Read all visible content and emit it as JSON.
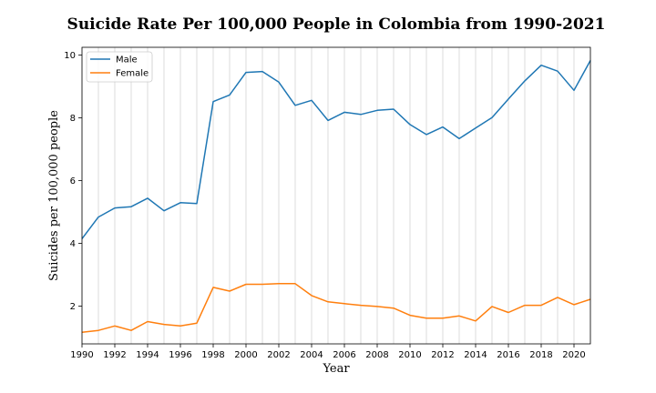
{
  "chart_data": {
    "type": "line",
    "title": "Suicide Rate Per 100,000 People in Colombia from 1990-2021",
    "xlabel": "Year",
    "ylabel": "Suicides per 100,000 people",
    "xlim": [
      1990,
      2021
    ],
    "ylim": [
      0.8,
      10.25
    ],
    "x_ticks": [
      1990,
      1992,
      1994,
      1996,
      1998,
      2000,
      2002,
      2004,
      2006,
      2008,
      2010,
      2012,
      2014,
      2016,
      2018,
      2020
    ],
    "y_ticks": [
      2,
      4,
      6,
      8,
      10
    ],
    "grid": "vertical lines at every year",
    "legend_position": "top-left",
    "x": [
      1990,
      1991,
      1992,
      1993,
      1994,
      1995,
      1996,
      1997,
      1998,
      1999,
      2000,
      2001,
      2002,
      2003,
      2004,
      2005,
      2006,
      2007,
      2008,
      2009,
      2010,
      2011,
      2012,
      2013,
      2014,
      2015,
      2016,
      2017,
      2018,
      2019,
      2020,
      2021
    ],
    "series": [
      {
        "name": "Male",
        "color": "#1f77b4",
        "values": [
          4.15,
          4.84,
          5.13,
          5.17,
          5.44,
          5.04,
          5.3,
          5.27,
          8.52,
          8.73,
          9.45,
          9.48,
          9.14,
          8.4,
          8.56,
          7.92,
          8.18,
          8.11,
          8.24,
          8.28,
          7.79,
          7.47,
          7.71,
          7.34,
          7.68,
          8.01,
          8.6,
          9.18,
          9.68,
          9.49,
          8.88,
          9.83
        ]
      },
      {
        "name": "Female",
        "color": "#ff7f0e",
        "values": [
          1.17,
          1.23,
          1.37,
          1.23,
          1.51,
          1.42,
          1.37,
          1.46,
          2.6,
          2.48,
          2.7,
          2.7,
          2.72,
          2.72,
          2.34,
          2.14,
          2.08,
          2.03,
          1.99,
          1.94,
          1.71,
          1.62,
          1.62,
          1.69,
          1.53,
          1.99,
          1.8,
          2.03,
          2.03,
          2.28,
          2.05,
          2.22
        ]
      }
    ]
  }
}
